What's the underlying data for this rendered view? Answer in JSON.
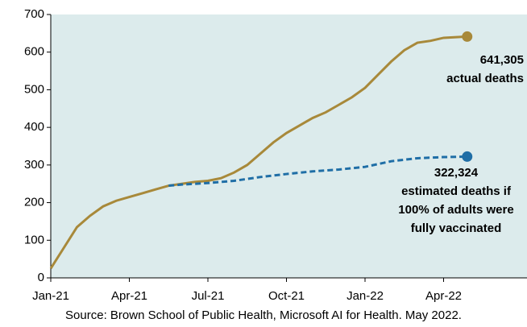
{
  "chart_data": {
    "type": "line",
    "xlim": [
      0,
      18
    ],
    "xticks": [
      {
        "value": 0,
        "label": "Jan-21"
      },
      {
        "value": 3,
        "label": "Apr-21"
      },
      {
        "value": 6,
        "label": "Jul-21"
      },
      {
        "value": 9,
        "label": "Oct-21"
      },
      {
        "value": 12,
        "label": "Jan-22"
      },
      {
        "value": 15,
        "label": "Apr-22"
      }
    ],
    "ylim": [
      0,
      700
    ],
    "yticks": [
      0,
      100,
      200,
      300,
      400,
      500,
      600,
      700
    ],
    "background": "#dcebec",
    "series": [
      {
        "name": "actual deaths",
        "color": "#a8893a",
        "dashed": false,
        "x": [
          0,
          0.5,
          1,
          1.5,
          2,
          2.5,
          3,
          3.5,
          4,
          4.5,
          5,
          5.5,
          6,
          6.5,
          7,
          7.5,
          8,
          8.5,
          9,
          9.5,
          10,
          10.5,
          11,
          11.5,
          12,
          12.5,
          13,
          13.5,
          14,
          14.5,
          15,
          15.9
        ],
        "values": [
          25,
          80,
          135,
          165,
          190,
          205,
          215,
          225,
          235,
          245,
          250,
          255,
          258,
          265,
          280,
          300,
          330,
          360,
          385,
          405,
          425,
          440,
          460,
          480,
          505,
          540,
          575,
          605,
          625,
          630,
          638,
          641.305
        ]
      },
      {
        "name": "estimated deaths if 100% of adults were fully vaccinated",
        "color": "#1f6ea6",
        "dashed": true,
        "x": [
          4.5,
          5,
          6,
          7,
          8,
          9,
          10,
          11,
          12,
          13,
          14,
          15,
          15.9
        ],
        "values": [
          245,
          248,
          252,
          258,
          268,
          276,
          283,
          288,
          295,
          310,
          318,
          321,
          322.324
        ]
      }
    ],
    "annotations": [
      {
        "lines": [
          "641,305",
          "actual deaths"
        ]
      },
      {
        "lines": [
          "322,324",
          "estimated deaths if",
          "100% of adults were",
          "fully vaccinated"
        ]
      }
    ],
    "source": "Source: Brown School of Public Health, Microsoft AI for Health. May 2022."
  }
}
